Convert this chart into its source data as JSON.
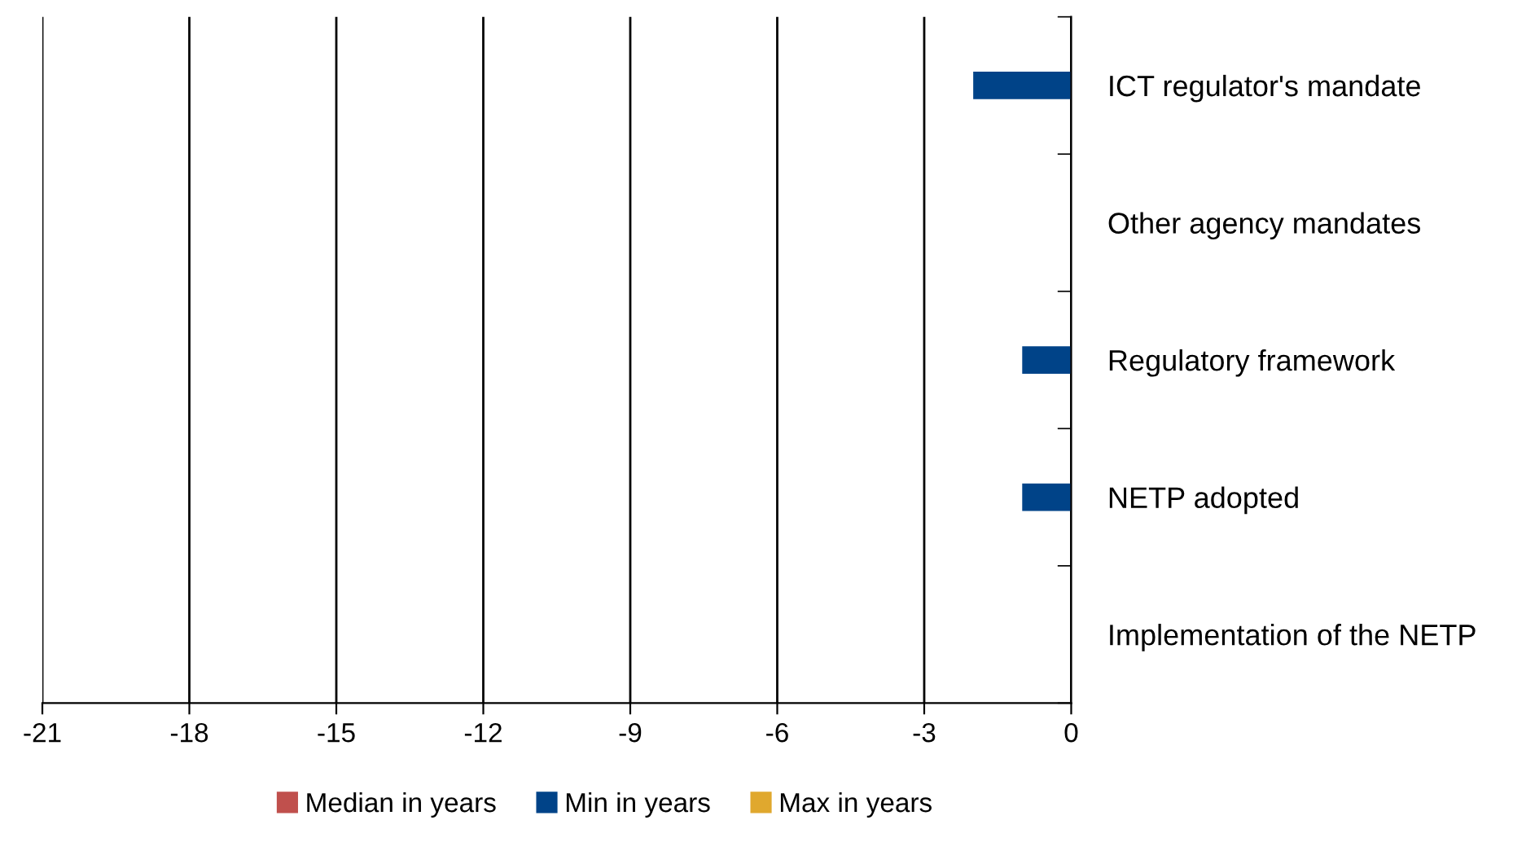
{
  "chart_data": {
    "type": "bar",
    "orientation": "horizontal",
    "categories": [
      "ICT regulator's mandate",
      "Other agency mandates",
      "Regulatory framework",
      "NETP adopted",
      "Implementation of the NETP"
    ],
    "series": [
      {
        "name": "Median in years",
        "color": "#c0504d",
        "values": [
          0,
          0,
          0,
          0,
          0
        ]
      },
      {
        "name": "Min in years",
        "color": "#004388",
        "values": [
          -2,
          0,
          -1,
          -1,
          0
        ]
      },
      {
        "name": "Max in years",
        "color": "#e0a82e",
        "values": [
          0,
          0,
          0,
          0,
          0
        ]
      }
    ],
    "xlim": [
      -21,
      0
    ],
    "xticks": [
      -21,
      -18,
      -15,
      -12,
      -9,
      -6,
      -3,
      0
    ],
    "grid": "x",
    "legend": "bottom"
  }
}
